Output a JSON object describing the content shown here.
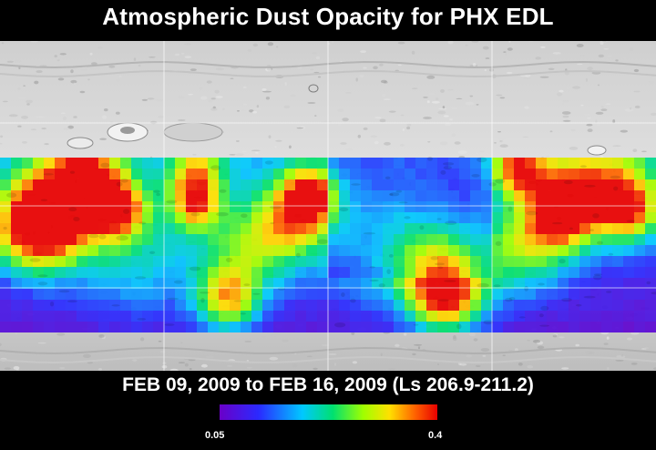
{
  "header": {
    "title": "Atmospheric Dust Opacity for PHX EDL"
  },
  "map": {
    "icon": "mars-topography-map",
    "colors": {
      "ocean_gray_light": "#d9d9d9",
      "ocean_gray_dark": "#9a9a9a",
      "background": "#000000",
      "grid": "#ffffff"
    }
  },
  "footer": {
    "date_range": "FEB 09, 2009 to FEB 16, 2009 (Ls 206.9-211.2)"
  },
  "colorbar": {
    "min_label": "0.05",
    "max_label": "0.4",
    "colors": [
      "#6a00c8",
      "#2a2aff",
      "#00c8ff",
      "#00e070",
      "#a0ff00",
      "#ffe000",
      "#ff6000",
      "#e80000"
    ]
  }
}
